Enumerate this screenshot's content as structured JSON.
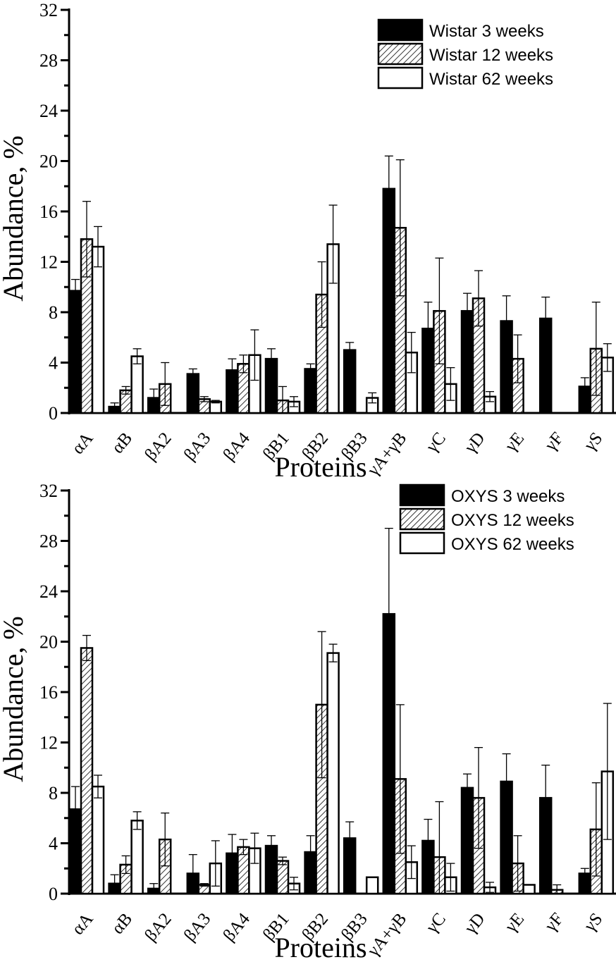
{
  "chart_data": [
    {
      "type": "bar",
      "title": "",
      "xlabel": "Proteins",
      "ylabel": "Abundance, %",
      "ylim": [
        0,
        32
      ],
      "yticks": [
        0,
        4,
        8,
        12,
        16,
        20,
        24,
        28,
        32
      ],
      "grid": false,
      "legend_position": "top-right",
      "categories": [
        "αA",
        "αB",
        "βA2",
        "βA3",
        "βA4",
        "βB1",
        "βB2",
        "βB3",
        "γA+γB",
        "γC",
        "γD",
        "γE",
        "γF",
        "γS"
      ],
      "series": [
        {
          "name": "Wistar 3 weeks",
          "fill": "solid",
          "values": [
            9.7,
            0.5,
            1.2,
            3.1,
            3.4,
            4.3,
            3.5,
            5.0,
            17.8,
            6.7,
            8.1,
            7.3,
            7.5,
            2.1
          ],
          "errors": [
            0.9,
            0.3,
            0.7,
            0.4,
            0.9,
            0.8,
            0.4,
            0.6,
            2.6,
            2.1,
            1.4,
            2.0,
            1.7,
            0.7
          ]
        },
        {
          "name": "Wistar 12 weeks",
          "fill": "hatched",
          "values": [
            13.8,
            1.8,
            2.3,
            1.1,
            3.9,
            1.0,
            9.4,
            0,
            14.7,
            8.1,
            9.1,
            4.3,
            0,
            5.1
          ],
          "errors": [
            3.0,
            0.3,
            1.7,
            0.2,
            0.7,
            1.1,
            2.6,
            0,
            5.4,
            4.2,
            2.2,
            1.9,
            0,
            3.7
          ]
        },
        {
          "name": "Wistar 62 weeks",
          "fill": "open",
          "values": [
            13.2,
            4.5,
            0,
            0.9,
            4.6,
            0.9,
            13.4,
            1.2,
            4.8,
            2.3,
            1.3,
            0,
            0,
            4.4
          ],
          "errors": [
            1.6,
            0.6,
            0,
            0.1,
            2.0,
            0.4,
            3.1,
            0.4,
            1.6,
            1.3,
            0.4,
            0,
            0,
            1.1
          ]
        }
      ]
    },
    {
      "type": "bar",
      "title": "",
      "xlabel": "Proteins",
      "ylabel": "Abundance, %",
      "ylim": [
        0,
        32
      ],
      "yticks": [
        0,
        4,
        8,
        12,
        16,
        20,
        24,
        28,
        32
      ],
      "grid": false,
      "legend_position": "top-right",
      "categories": [
        "αA",
        "αB",
        "βA2",
        "βA3",
        "βA4",
        "βB1",
        "βB2",
        "βB3",
        "γA+γB",
        "γC",
        "γD",
        "γE",
        "γF",
        "γS"
      ],
      "series": [
        {
          "name": "OXYS 3 weeks",
          "fill": "solid",
          "values": [
            6.7,
            0.8,
            0.4,
            1.6,
            3.2,
            3.8,
            3.3,
            4.4,
            22.2,
            4.2,
            8.4,
            8.9,
            7.6,
            1.6
          ],
          "errors": [
            1.8,
            0.7,
            0.4,
            1.5,
            1.5,
            0.8,
            1.3,
            1.3,
            6.8,
            1.7,
            1.1,
            2.2,
            2.6,
            0.4
          ]
        },
        {
          "name": "OXYS 12 weeks",
          "fill": "hatched",
          "values": [
            19.5,
            2.3,
            4.3,
            0.7,
            3.7,
            2.6,
            15.0,
            0,
            9.1,
            2.9,
            7.6,
            2.4,
            0.3,
            5.1
          ],
          "errors": [
            1.0,
            0.7,
            2.1,
            0.1,
            0.6,
            0.3,
            5.8,
            0,
            5.9,
            4.4,
            4.0,
            2.2,
            0.4,
            3.7
          ]
        },
        {
          "name": "OXYS 62 weeks",
          "fill": "open",
          "values": [
            8.5,
            5.8,
            0,
            2.4,
            3.6,
            0.8,
            19.1,
            1.3,
            2.5,
            1.3,
            0.5,
            0.7,
            0,
            9.7
          ],
          "errors": [
            0.9,
            0.7,
            0,
            1.8,
            1.2,
            0.5,
            0.7,
            0,
            1.3,
            1.1,
            0.4,
            0,
            0,
            5.4
          ]
        }
      ]
    }
  ]
}
